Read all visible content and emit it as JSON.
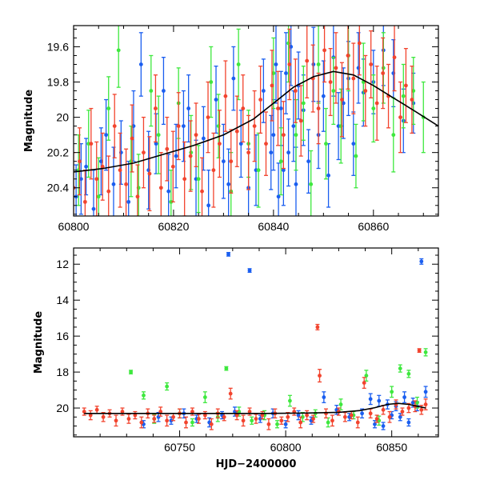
{
  "chart_data": [
    {
      "type": "scatter",
      "title": "",
      "xlabel": "",
      "ylabel": "Magnitude",
      "xlim": [
        60800,
        60873
      ],
      "ylim": [
        20.56,
        19.48
      ],
      "y_inverted": true,
      "x_ticks": [
        60800,
        60820,
        60840,
        60860
      ],
      "x_tick_labels": [
        "60800",
        "60820",
        "60840",
        "60860"
      ],
      "y_ticks": [
        19.6,
        19.8,
        20.0,
        20.2,
        20.4
      ],
      "y_tick_labels": [
        "19.6",
        "19.8",
        "20",
        "20.2",
        "20.4"
      ],
      "model_curve": {
        "color": "#000000",
        "x": [
          60800,
          60806,
          60812,
          60818,
          60824,
          60830,
          60836,
          60840,
          60844,
          60848,
          60852,
          60856,
          60860,
          60864,
          60868,
          60873
        ],
        "y": [
          20.31,
          20.29,
          20.26,
          20.21,
          20.16,
          20.1,
          20.01,
          19.92,
          19.83,
          19.77,
          19.74,
          19.76,
          19.82,
          19.89,
          19.96,
          20.05
        ]
      },
      "series": [
        {
          "color": "#1a5ef0",
          "x": [
            60800.5,
            60801.5,
            60802.5,
            60804,
            60805.5,
            60806.5,
            60808,
            60809.5,
            60811,
            60812,
            60813.5,
            60815,
            60816.5,
            60818,
            60819,
            60820.5,
            60822,
            60823,
            60824.5,
            60826,
            60827,
            60828.5,
            60830,
            60831,
            60832,
            60833.5,
            60835,
            60836.5,
            60838,
            60839.5,
            60840,
            60840.5,
            60841,
            60841.5,
            60842,
            60842.5,
            60843,
            60843.5,
            60844,
            60844.5,
            60845,
            60846,
            60847,
            60848,
            60849,
            60850,
            60851,
            60852,
            60853,
            60854,
            60855,
            60856,
            60857,
            60858,
            60860,
            60862,
            60864,
            60866,
            60868
          ],
          "y": [
            20.45,
            20.35,
            20.28,
            20.52,
            20.25,
            20.1,
            20.38,
            20.2,
            20.48,
            20.05,
            19.7,
            20.3,
            20.15,
            19.85,
            20.42,
            20.22,
            20.05,
            19.95,
            20.35,
            20.12,
            20.5,
            19.9,
            20.25,
            20.38,
            19.78,
            20.15,
            20.4,
            20.3,
            19.85,
            20.2,
            20.1,
            19.7,
            20.45,
            19.95,
            20.3,
            19.75,
            20.2,
            19.6,
            20.05,
            20.38,
            19.82,
            19.96,
            20.25,
            19.7,
            20.1,
            19.88,
            20.33,
            19.66,
            20.05,
            19.92,
            19.78,
            20.15,
            19.72,
            19.86,
            19.8,
            19.62,
            19.75,
            20.02,
            19.92
          ],
          "err": [
            0.18,
            0.2,
            0.16,
            0.22,
            0.19,
            0.2,
            0.21,
            0.18,
            0.23,
            0.2,
            0.18,
            0.22,
            0.17,
            0.19,
            0.21,
            0.18,
            0.2,
            0.19,
            0.22,
            0.18,
            0.2,
            0.19,
            0.21,
            0.2,
            0.18,
            0.19,
            0.22,
            0.2,
            0.18,
            0.21,
            0.2,
            0.22,
            0.19,
            0.21,
            0.2,
            0.23,
            0.19,
            0.22,
            0.2,
            0.21,
            0.19,
            0.2,
            0.18,
            0.21,
            0.19,
            0.2,
            0.18,
            0.22,
            0.19,
            0.2,
            0.21,
            0.18,
            0.2,
            0.19,
            0.18,
            0.2,
            0.19,
            0.18,
            0.17
          ]
        },
        {
          "color": "#3ee83e",
          "x": [
            60801,
            60803,
            60805,
            60807,
            60809,
            60811.5,
            60813,
            60815.5,
            60817,
            60819.5,
            60821,
            60823.5,
            60825,
            60827.5,
            60829,
            60831.5,
            60833,
            60835,
            60837,
            60840,
            60841.5,
            60843,
            60844.5,
            60846,
            60847.5,
            60849,
            60850.5,
            60852,
            60853.5,
            60855,
            60856.5,
            60858,
            60860,
            60862,
            60864,
            60866,
            60868,
            60870
          ],
          "y": [
            20.3,
            20.15,
            20.45,
            19.95,
            19.62,
            20.25,
            20.4,
            19.85,
            20.1,
            20.48,
            19.92,
            20.2,
            20.35,
            19.8,
            20.05,
            20.42,
            19.7,
            20.15,
            20.3,
            19.75,
            20.25,
            19.58,
            20.1,
            19.92,
            20.38,
            19.7,
            20.15,
            19.85,
            20.05,
            19.65,
            20.22,
            19.8,
            19.95,
            19.72,
            20.1,
            19.88,
            19.85,
            20.0
          ],
          "err": [
            0.2,
            0.19,
            0.22,
            0.18,
            0.21,
            0.2,
            0.19,
            0.2,
            0.22,
            0.18,
            0.2,
            0.21,
            0.19,
            0.2,
            0.18,
            0.22,
            0.2,
            0.19,
            0.21,
            0.2,
            0.19,
            0.22,
            0.2,
            0.21,
            0.19,
            0.22,
            0.2,
            0.19,
            0.21,
            0.2,
            0.18,
            0.22,
            0.19,
            0.2,
            0.21,
            0.18,
            0.19,
            0.2
          ]
        },
        {
          "color": "#f2442e",
          "x": [
            60800,
            60801.2,
            60802.3,
            60803.5,
            60804.6,
            60805.8,
            60807,
            60808.2,
            60809.3,
            60810.5,
            60811.7,
            60812.8,
            60814,
            60815.2,
            60816.4,
            60817.5,
            60818.7,
            60819.9,
            60821,
            60822.2,
            60823.4,
            60824.5,
            60825.7,
            60826.9,
            60828,
            60829.2,
            60830.4,
            60831.5,
            60832.7,
            60833.9,
            60835,
            60836.2,
            60837.4,
            60838.5,
            60839.7,
            60840.9,
            60842,
            60843.2,
            60844.4,
            60845.5,
            60846.7,
            60847.9,
            60849,
            60850.2,
            60851.4,
            60852.5,
            60853.7,
            60854.9,
            60856,
            60857.2,
            60858.4,
            60859.5,
            60860.7,
            60861.9,
            60863,
            60864.2,
            60865.4,
            60866.5,
            60867.7
          ],
          "y": [
            20.4,
            20.25,
            20.48,
            20.15,
            20.35,
            20.28,
            20.42,
            20.05,
            20.3,
            20.38,
            20.12,
            20.45,
            20.2,
            20.32,
            19.95,
            20.4,
            20.18,
            20.28,
            20.05,
            20.35,
            20.22,
            20.1,
            20.42,
            20.0,
            20.3,
            20.15,
            19.88,
            20.25,
            20.08,
            19.95,
            20.2,
            20.05,
            19.9,
            20.15,
            19.82,
            19.95,
            20.1,
            19.7,
            19.85,
            20.02,
            19.68,
            19.78,
            19.95,
            19.62,
            19.8,
            19.72,
            19.9,
            19.65,
            19.78,
            19.58,
            19.85,
            19.7,
            19.92,
            19.75,
            19.88,
            19.66,
            20.0,
            19.82,
            19.9
          ],
          "err": [
            0.2,
            0.19,
            0.18,
            0.2,
            0.21,
            0.19,
            0.2,
            0.18,
            0.21,
            0.2,
            0.19,
            0.18,
            0.2,
            0.21,
            0.19,
            0.2,
            0.18,
            0.2,
            0.19,
            0.21,
            0.2,
            0.18,
            0.19,
            0.2,
            0.21,
            0.19,
            0.2,
            0.18,
            0.2,
            0.19,
            0.21,
            0.2,
            0.19,
            0.18,
            0.2,
            0.21,
            0.19,
            0.2,
            0.18,
            0.2,
            0.21,
            0.19,
            0.2,
            0.18,
            0.19,
            0.2,
            0.21,
            0.19,
            0.2,
            0.18,
            0.2,
            0.19,
            0.21,
            0.2,
            0.18,
            0.19,
            0.2,
            0.21,
            0.19
          ]
        }
      ]
    },
    {
      "type": "scatter",
      "title": "",
      "xlabel": "HJD−2400000",
      "ylabel": "Magnitude",
      "xlim": [
        60700,
        60872
      ],
      "ylim": [
        21.6,
        11.1
      ],
      "y_inverted": true,
      "x_ticks": [
        60750,
        60800,
        60850
      ],
      "x_tick_labels": [
        "60750",
        "60800",
        "60850"
      ],
      "y_ticks": [
        12,
        14,
        16,
        18,
        20
      ],
      "y_tick_labels": [
        "12",
        "14",
        "16",
        "18",
        "20"
      ],
      "model_curve": {
        "color": "#000000",
        "x": [
          60705,
          60730,
          60760,
          60790,
          60810,
          60825,
          60835,
          60842,
          60848,
          60853,
          60858,
          60862,
          60866
        ],
        "y": [
          20.3,
          20.3,
          20.3,
          20.3,
          20.28,
          20.24,
          20.14,
          19.98,
          19.8,
          19.74,
          19.8,
          19.9,
          20.0
        ]
      },
      "series": [
        {
          "color": "#1a5ef0",
          "x": [
            60733,
            60740,
            60746,
            60752,
            60758,
            60764,
            60770,
            60773,
            60776,
            60783,
            60788,
            60794,
            60800,
            60806,
            60812,
            60818,
            60824,
            60830,
            60836,
            60840,
            60842,
            60844,
            60846,
            60848,
            60850,
            60852,
            60854,
            60856,
            60858,
            60860,
            60862,
            60864,
            60866
          ],
          "y": [
            20.9,
            20.5,
            20.7,
            20.3,
            20.6,
            20.8,
            20.4,
            11.45,
            20.2,
            12.35,
            20.6,
            20.3,
            20.9,
            20.4,
            20.7,
            19.4,
            20.1,
            20.5,
            20.3,
            19.5,
            20.9,
            19.6,
            21.0,
            19.8,
            20.4,
            19.9,
            20.5,
            19.4,
            20.8,
            19.7,
            19.9,
            11.85,
            19.1
          ],
          "err": [
            0.2,
            0.25,
            0.2,
            0.25,
            0.2,
            0.25,
            0.2,
            0.1,
            0.25,
            0.1,
            0.2,
            0.25,
            0.2,
            0.25,
            0.2,
            0.3,
            0.25,
            0.2,
            0.25,
            0.3,
            0.2,
            0.3,
            0.2,
            0.25,
            0.2,
            0.25,
            0.2,
            0.3,
            0.2,
            0.25,
            0.25,
            0.15,
            0.3
          ]
        },
        {
          "color": "#3ee83e",
          "x": [
            60727,
            60733,
            60738,
            60744,
            60750,
            60756,
            60762,
            60768,
            60772,
            60778,
            60784,
            60790,
            60796,
            60802,
            60808,
            60814,
            60820,
            60826,
            60832,
            60838,
            60844,
            60850,
            60854,
            60858,
            60862,
            60866
          ],
          "y": [
            18.0,
            19.3,
            20.6,
            18.8,
            20.3,
            20.8,
            19.4,
            20.5,
            17.8,
            20.2,
            20.7,
            20.4,
            20.9,
            19.6,
            20.5,
            20.3,
            20.8,
            19.8,
            20.4,
            18.2,
            20.7,
            19.1,
            17.8,
            18.1,
            19.7,
            16.9
          ],
          "err": [
            0.1,
            0.2,
            0.25,
            0.2,
            0.25,
            0.2,
            0.3,
            0.25,
            0.1,
            0.25,
            0.2,
            0.25,
            0.2,
            0.3,
            0.25,
            0.2,
            0.25,
            0.3,
            0.2,
            0.3,
            0.25,
            0.3,
            0.2,
            0.2,
            0.3,
            0.2
          ]
        },
        {
          "color": "#f2442e",
          "x": [
            60705,
            60708,
            60711,
            60714,
            60717,
            60720,
            60723,
            60726,
            60729,
            60732,
            60735,
            60738,
            60741,
            60744,
            60747,
            60750,
            60753,
            60756,
            60759,
            60762,
            60765,
            60768,
            60771,
            60774,
            60777,
            60780,
            60783,
            60786,
            60789,
            60792,
            60795,
            60798,
            60801,
            60804,
            60807,
            60810,
            60813,
            60815,
            60816,
            60819,
            60822,
            60825,
            60828,
            60831,
            60834,
            60837,
            60840,
            60843,
            60846,
            60849,
            60852,
            60855,
            60858,
            60861,
            60863,
            60864,
            60866
          ],
          "y": [
            20.2,
            20.4,
            20.1,
            20.5,
            20.3,
            20.7,
            20.2,
            20.6,
            20.4,
            20.8,
            20.3,
            20.6,
            20.2,
            20.7,
            20.5,
            20.3,
            20.8,
            20.2,
            20.6,
            20.4,
            20.9,
            20.3,
            20.5,
            19.2,
            20.4,
            20.7,
            20.2,
            20.6,
            20.4,
            20.9,
            20.3,
            20.7,
            20.5,
            20.2,
            20.8,
            20.4,
            20.6,
            15.5,
            18.2,
            20.3,
            20.7,
            20.2,
            20.5,
            20.4,
            20.8,
            18.6,
            20.3,
            20.6,
            20.1,
            20.5,
            19.8,
            20.2,
            20.0,
            19.9,
            16.8,
            20.1,
            19.8
          ],
          "err": [
            0.2,
            0.25,
            0.2,
            0.25,
            0.2,
            0.3,
            0.2,
            0.25,
            0.2,
            0.3,
            0.25,
            0.2,
            0.25,
            0.3,
            0.2,
            0.25,
            0.3,
            0.2,
            0.25,
            0.2,
            0.3,
            0.25,
            0.2,
            0.3,
            0.25,
            0.3,
            0.2,
            0.25,
            0.2,
            0.3,
            0.25,
            0.2,
            0.25,
            0.2,
            0.3,
            0.25,
            0.2,
            0.15,
            0.35,
            0.25,
            0.3,
            0.2,
            0.25,
            0.2,
            0.3,
            0.3,
            0.25,
            0.2,
            0.25,
            0.3,
            0.25,
            0.2,
            0.25,
            0.3,
            0.1,
            0.25,
            0.3
          ]
        }
      ]
    }
  ]
}
